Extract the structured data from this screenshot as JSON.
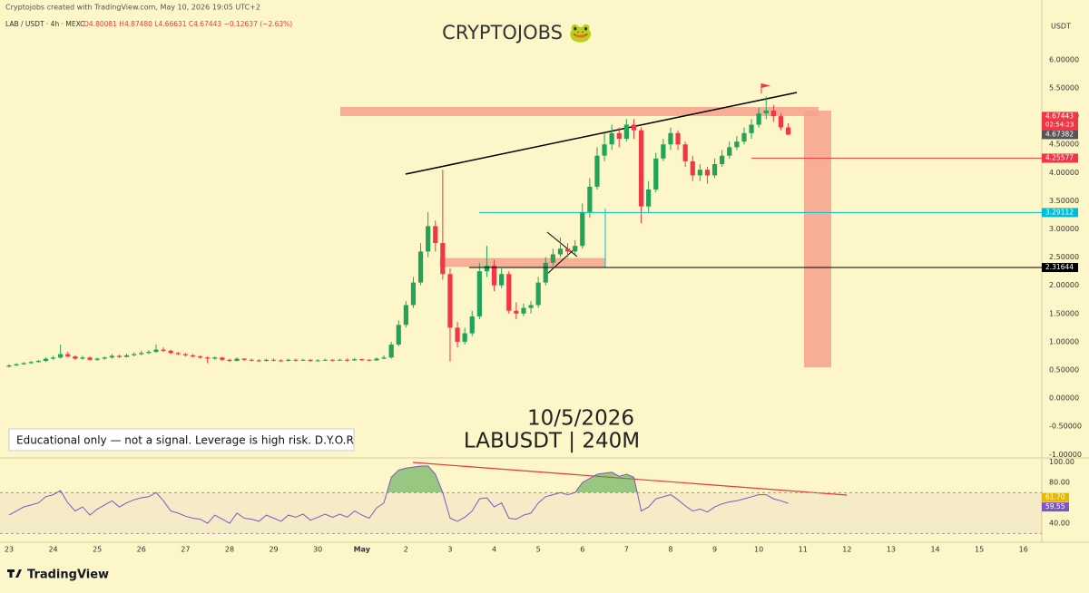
{
  "header": "Cryptojobs created with TradingView.com, May 10, 2026 19:05 UTC+2",
  "legend_symbol": "LAB / USDT · 4h · MEXC",
  "legend_values": "O4.80081 H4.87480 L4.66631 C4.67443 −0.12637 (−2.63%)",
  "brand": "TradingView",
  "chart_data": {
    "type": "candlestick",
    "title": "CRYPTOJOBS 🐸",
    "annotations": [
      "10/5/2026",
      "LABUSDT | 240M",
      "Educational only — not a signal. Leverage is high risk. D.Y.O.R"
    ],
    "currency": "USDT",
    "up_color": "#22a35a",
    "down_color": "#f23645",
    "xlim": [
      -1.23,
      140.5
    ],
    "xticks": [
      {
        "value": 0,
        "label": "23"
      },
      {
        "value": 6,
        "label": "24"
      },
      {
        "value": 12,
        "label": "25"
      },
      {
        "value": 18,
        "label": "26"
      },
      {
        "value": 24,
        "label": "27"
      },
      {
        "value": 30,
        "label": "28"
      },
      {
        "value": 36,
        "label": "29"
      },
      {
        "value": 42,
        "label": "30"
      },
      {
        "value": 48,
        "label": "May"
      },
      {
        "value": 54,
        "label": "2"
      },
      {
        "value": 60,
        "label": "3"
      },
      {
        "value": 66,
        "label": "4"
      },
      {
        "value": 72,
        "label": "5"
      },
      {
        "value": 78,
        "label": "6"
      },
      {
        "value": 84,
        "label": "7"
      },
      {
        "value": 90,
        "label": "8"
      },
      {
        "value": 96,
        "label": "9"
      },
      {
        "value": 102,
        "label": "10"
      },
      {
        "value": 108,
        "label": "11"
      },
      {
        "value": 114,
        "label": "12"
      },
      {
        "value": 120,
        "label": "13"
      },
      {
        "value": 126,
        "label": "14"
      },
      {
        "value": 132,
        "label": "15"
      },
      {
        "value": 138,
        "label": "16"
      }
    ],
    "ylim": [
      -1.06,
      6.9
    ],
    "yticks": [
      {
        "value": 6,
        "label": "6.00000"
      },
      {
        "value": 5.5,
        "label": "5.50000"
      },
      {
        "value": 5,
        "label": "5.00000"
      },
      {
        "value": 4.5,
        "label": "4.50000"
      },
      {
        "value": 4,
        "label": "4.00000"
      },
      {
        "value": 3.5,
        "label": "3.50000"
      },
      {
        "value": 3,
        "label": "3.00000"
      },
      {
        "value": 2.5,
        "label": "2.50000"
      },
      {
        "value": 2,
        "label": "2.00000"
      },
      {
        "value": 1.5,
        "label": "1.50000"
      },
      {
        "value": 1,
        "label": "1.00000"
      },
      {
        "value": 0.5,
        "label": "0.50000"
      },
      {
        "value": 0,
        "label": "0.00000"
      },
      {
        "value": -0.5,
        "label": "-0.50000"
      },
      {
        "value": -1,
        "label": "-1.00000"
      }
    ],
    "ohlc": [
      [
        0.56,
        0.6,
        0.54,
        0.58
      ],
      [
        0.58,
        0.62,
        0.57,
        0.6
      ],
      [
        0.6,
        0.64,
        0.59,
        0.62
      ],
      [
        0.62,
        0.66,
        0.61,
        0.64
      ],
      [
        0.64,
        0.68,
        0.63,
        0.66
      ],
      [
        0.66,
        0.72,
        0.64,
        0.7
      ],
      [
        0.7,
        0.75,
        0.68,
        0.72
      ],
      [
        0.72,
        0.95,
        0.7,
        0.78
      ],
      [
        0.78,
        0.82,
        0.72,
        0.74
      ],
      [
        0.74,
        0.76,
        0.68,
        0.7
      ],
      [
        0.7,
        0.75,
        0.68,
        0.72
      ],
      [
        0.72,
        0.74,
        0.66,
        0.68
      ],
      [
        0.68,
        0.72,
        0.66,
        0.7
      ],
      [
        0.7,
        0.74,
        0.68,
        0.72
      ],
      [
        0.72,
        0.78,
        0.7,
        0.75
      ],
      [
        0.75,
        0.77,
        0.71,
        0.73
      ],
      [
        0.73,
        0.79,
        0.72,
        0.76
      ],
      [
        0.76,
        0.81,
        0.74,
        0.78
      ],
      [
        0.78,
        0.84,
        0.76,
        0.8
      ],
      [
        0.8,
        0.85,
        0.78,
        0.82
      ],
      [
        0.82,
        0.95,
        0.8,
        0.86
      ],
      [
        0.86,
        0.9,
        0.82,
        0.84
      ],
      [
        0.84,
        0.86,
        0.78,
        0.8
      ],
      [
        0.8,
        0.82,
        0.76,
        0.78
      ],
      [
        0.78,
        0.8,
        0.74,
        0.76
      ],
      [
        0.76,
        0.78,
        0.72,
        0.74
      ],
      [
        0.74,
        0.76,
        0.7,
        0.72
      ],
      [
        0.72,
        0.74,
        0.62,
        0.7
      ],
      [
        0.7,
        0.74,
        0.68,
        0.72
      ],
      [
        0.72,
        0.73,
        0.66,
        0.68
      ],
      [
        0.68,
        0.7,
        0.64,
        0.66
      ],
      [
        0.66,
        0.72,
        0.65,
        0.7
      ],
      [
        0.7,
        0.71,
        0.66,
        0.68
      ],
      [
        0.68,
        0.7,
        0.65,
        0.67
      ],
      [
        0.67,
        0.69,
        0.64,
        0.66
      ],
      [
        0.66,
        0.7,
        0.65,
        0.68
      ],
      [
        0.68,
        0.7,
        0.65,
        0.67
      ],
      [
        0.67,
        0.69,
        0.64,
        0.66
      ],
      [
        0.66,
        0.7,
        0.65,
        0.68
      ],
      [
        0.68,
        0.7,
        0.65,
        0.67
      ],
      [
        0.67,
        0.7,
        0.66,
        0.68
      ],
      [
        0.68,
        0.69,
        0.64,
        0.66
      ],
      [
        0.66,
        0.69,
        0.65,
        0.67
      ],
      [
        0.67,
        0.7,
        0.66,
        0.68
      ],
      [
        0.68,
        0.69,
        0.65,
        0.67
      ],
      [
        0.67,
        0.7,
        0.66,
        0.68
      ],
      [
        0.68,
        0.7,
        0.65,
        0.67
      ],
      [
        0.67,
        0.71,
        0.66,
        0.69
      ],
      [
        0.69,
        0.7,
        0.66,
        0.68
      ],
      [
        0.68,
        0.69,
        0.65,
        0.67
      ],
      [
        0.67,
        0.72,
        0.66,
        0.7
      ],
      [
        0.7,
        0.76,
        0.69,
        0.72
      ],
      [
        0.72,
        1.0,
        0.7,
        0.95
      ],
      [
        0.95,
        1.38,
        0.92,
        1.3
      ],
      [
        1.3,
        1.72,
        1.25,
        1.65
      ],
      [
        1.65,
        2.15,
        1.6,
        2.05
      ],
      [
        2.05,
        2.75,
        2.0,
        2.6
      ],
      [
        2.6,
        3.3,
        2.5,
        3.05
      ],
      [
        3.05,
        3.15,
        2.6,
        2.75
      ],
      [
        2.75,
        4.05,
        2.1,
        2.2
      ],
      [
        2.2,
        2.3,
        0.65,
        1.25
      ],
      [
        1.25,
        1.35,
        0.9,
        1.0
      ],
      [
        1.0,
        1.25,
        0.95,
        1.15
      ],
      [
        1.15,
        1.55,
        1.1,
        1.45
      ],
      [
        1.45,
        2.4,
        1.4,
        2.25
      ],
      [
        2.25,
        2.7,
        2.15,
        2.35
      ],
      [
        2.35,
        2.45,
        1.9,
        2.0
      ],
      [
        2.0,
        2.3,
        1.95,
        2.2
      ],
      [
        2.2,
        2.25,
        1.5,
        1.55
      ],
      [
        1.55,
        1.7,
        1.4,
        1.5
      ],
      [
        1.5,
        1.68,
        1.45,
        1.6
      ],
      [
        1.6,
        1.72,
        1.5,
        1.65
      ],
      [
        1.65,
        2.15,
        1.6,
        2.05
      ],
      [
        2.05,
        2.5,
        2.0,
        2.4
      ],
      [
        2.4,
        2.65,
        2.35,
        2.55
      ],
      [
        2.55,
        2.85,
        2.5,
        2.65
      ],
      [
        2.65,
        2.75,
        2.5,
        2.6
      ],
      [
        2.6,
        2.8,
        2.55,
        2.7
      ],
      [
        2.7,
        3.45,
        2.65,
        3.3
      ],
      [
        3.3,
        3.9,
        3.2,
        3.75
      ],
      [
        3.75,
        4.45,
        3.7,
        4.3
      ],
      [
        4.3,
        4.7,
        4.2,
        4.5
      ],
      [
        4.5,
        4.85,
        4.4,
        4.7
      ],
      [
        4.7,
        4.8,
        4.45,
        4.6
      ],
      [
        4.6,
        4.95,
        4.55,
        4.85
      ],
      [
        4.85,
        4.95,
        4.6,
        4.75
      ],
      [
        4.75,
        4.8,
        3.1,
        3.4
      ],
      [
        3.4,
        3.85,
        3.3,
        3.7
      ],
      [
        3.7,
        4.35,
        3.65,
        4.25
      ],
      [
        4.25,
        4.6,
        4.2,
        4.5
      ],
      [
        4.5,
        4.8,
        4.4,
        4.7
      ],
      [
        4.7,
        4.75,
        4.4,
        4.5
      ],
      [
        4.5,
        4.55,
        4.1,
        4.2
      ],
      [
        4.2,
        4.3,
        3.85,
        3.95
      ],
      [
        3.95,
        4.15,
        3.85,
        4.05
      ],
      [
        4.05,
        4.1,
        3.8,
        3.95
      ],
      [
        3.95,
        4.25,
        3.9,
        4.15
      ],
      [
        4.15,
        4.4,
        4.1,
        4.3
      ],
      [
        4.3,
        4.55,
        4.25,
        4.45
      ],
      [
        4.45,
        4.65,
        4.4,
        4.55
      ],
      [
        4.55,
        4.8,
        4.5,
        4.7
      ],
      [
        4.7,
        4.95,
        4.6,
        4.85
      ],
      [
        4.85,
        5.15,
        4.8,
        5.05
      ],
      [
        5.05,
        5.35,
        4.95,
        5.1
      ],
      [
        5.1,
        5.2,
        4.9,
        5.0
      ],
      [
        5.0,
        5.05,
        4.75,
        4.80081
      ],
      [
        4.80081,
        4.8748,
        4.66631,
        4.67443
      ]
    ],
    "last_price": 4.67443,
    "countdown": "02:54:23",
    "price_tag": 4.67382,
    "levels": [
      {
        "value": 4.25577,
        "color": "#f23645"
      },
      {
        "value": 3.29112,
        "color": "#00bcd4"
      },
      {
        "value": 2.31644,
        "color": "#000000"
      }
    ],
    "rsi": {
      "color": "#7e57c2",
      "ylim": [
        21.5,
        104
      ],
      "yticks": [
        {
          "value": 100,
          "label": "100.00"
        },
        {
          "value": 80,
          "label": "80.00"
        },
        {
          "value": 40,
          "label": "40.00"
        }
      ],
      "labels": [
        {
          "value": 61.7,
          "label": "61.70"
        },
        {
          "value": 59.55,
          "label": "59.55"
        }
      ],
      "values": [
        48,
        52,
        56,
        58,
        60,
        66,
        68,
        72,
        60,
        52,
        56,
        48,
        54,
        58,
        62,
        56,
        60,
        63,
        65,
        66,
        70,
        62,
        52,
        50,
        47,
        45,
        44,
        40,
        48,
        44,
        40,
        50,
        45,
        44,
        42,
        48,
        45,
        42,
        48,
        46,
        49,
        43,
        46,
        49,
        46,
        49,
        46,
        52,
        48,
        45,
        55,
        60,
        85,
        92,
        94,
        95,
        96,
        96,
        88,
        70,
        45,
        42,
        46,
        52,
        64,
        65,
        56,
        60,
        45,
        44,
        48,
        50,
        60,
        66,
        68,
        70,
        68,
        70,
        80,
        84,
        88,
        89,
        90,
        86,
        88,
        85,
        52,
        56,
        64,
        66,
        68,
        63,
        57,
        52,
        54,
        51,
        56,
        59,
        61,
        62,
        64,
        66,
        68,
        68,
        64,
        62,
        59.55
      ]
    }
  }
}
